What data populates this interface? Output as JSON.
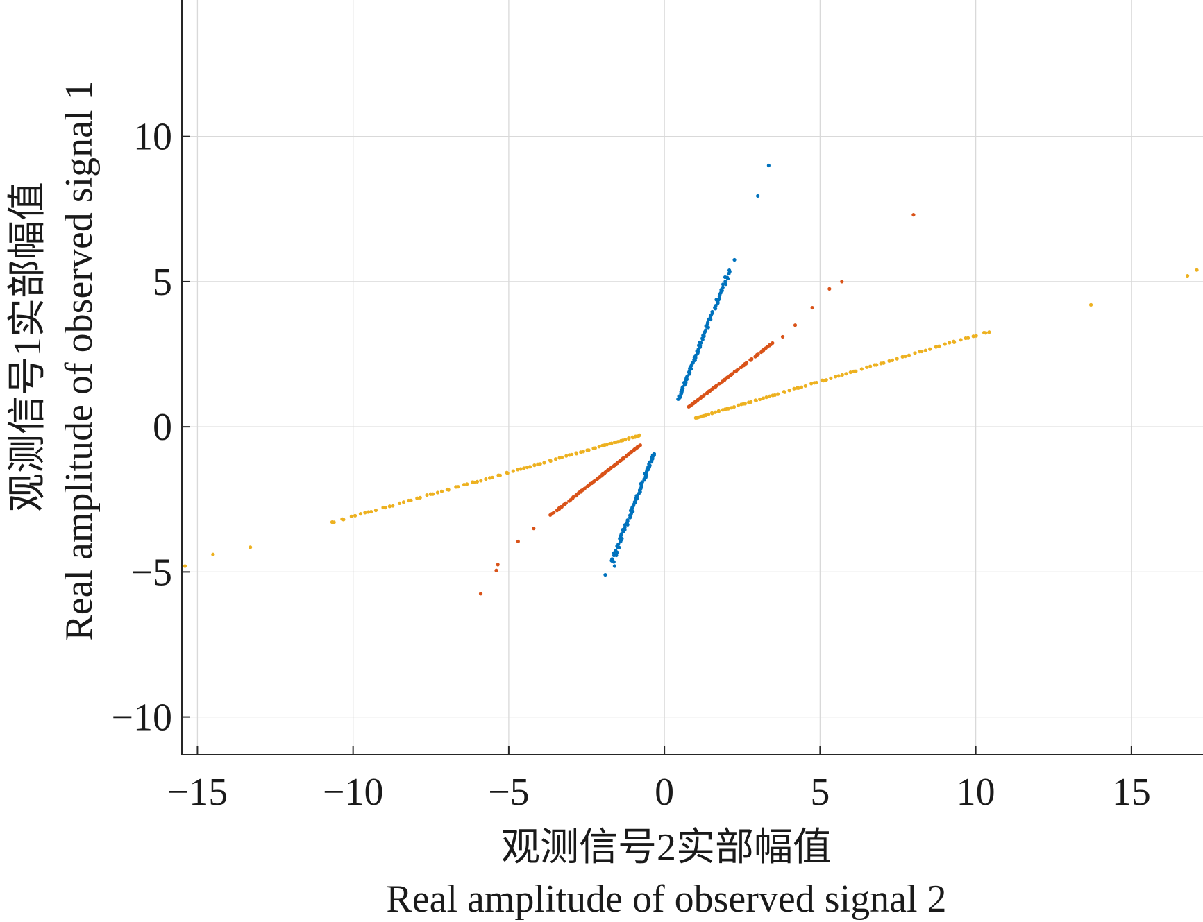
{
  "chart_data": {
    "type": "scatter",
    "title": "",
    "xlabel_cn": "观测信号2实部幅值",
    "xlabel_en": "Real amplitude of observed signal 2",
    "ylabel_cn": "观测信号1实部幅值",
    "ylabel_en": "Real amplitude of observed signal 1",
    "xlim": [
      -15.5,
      17.3
    ],
    "ylim": [
      -11.3,
      14.7
    ],
    "xticks": [
      -15,
      -10,
      -5,
      0,
      5,
      10,
      15
    ],
    "xtick_labels": [
      "−15",
      "−10",
      "−5",
      "0",
      "5",
      "10",
      "15"
    ],
    "yticks": [
      -10,
      -5,
      0,
      5,
      10
    ],
    "ytick_labels": [
      "−10",
      "−5",
      "0",
      "5",
      "10"
    ],
    "grid": true,
    "legend": false,
    "series": [
      {
        "color": "#0072BD",
        "segments": [
          {
            "x": [
              0.45,
              2.1
            ],
            "y": [
              0.95,
              5.4
            ]
          },
          {
            "x": [
              -0.35,
              -1.7
            ],
            "y": [
              -0.95,
              -4.7
            ]
          }
        ],
        "points": [
          {
            "x": 3.35,
            "y": 9.0
          },
          {
            "x": 3.0,
            "y": 7.95
          },
          {
            "x": 2.25,
            "y": 5.75
          },
          {
            "x": 1.75,
            "y": 4.4
          },
          {
            "x": -1.9,
            "y": -5.1
          },
          {
            "x": -1.6,
            "y": -4.8
          }
        ]
      },
      {
        "color": "#D95319",
        "segments": [
          {
            "x": [
              0.8,
              3.5
            ],
            "y": [
              0.7,
              2.9
            ]
          },
          {
            "x": [
              -0.8,
              -3.6
            ],
            "y": [
              -0.65,
              -3.0
            ]
          }
        ],
        "points": [
          {
            "x": 3.8,
            "y": 3.1
          },
          {
            "x": 4.2,
            "y": 3.5
          },
          {
            "x": 4.75,
            "y": 4.1
          },
          {
            "x": 5.3,
            "y": 4.75
          },
          {
            "x": 5.7,
            "y": 5.0
          },
          {
            "x": 8.0,
            "y": 7.3
          },
          {
            "x": -4.2,
            "y": -3.5
          },
          {
            "x": -4.7,
            "y": -3.95
          },
          {
            "x": -5.35,
            "y": -4.75
          },
          {
            "x": -5.4,
            "y": -4.95
          },
          {
            "x": -5.9,
            "y": -5.75
          }
        ]
      },
      {
        "color": "#EDB120",
        "segments": [
          {
            "x": [
              1.0,
              10.5
            ],
            "y": [
              0.3,
              3.3
            ]
          },
          {
            "x": [
              -0.8,
              -10.7
            ],
            "y": [
              -0.3,
              -3.3
            ]
          }
        ],
        "points": [
          {
            "x": 13.7,
            "y": 4.2
          },
          {
            "x": 16.8,
            "y": 5.2
          },
          {
            "x": 17.1,
            "y": 5.4
          },
          {
            "x": -13.3,
            "y": -4.15
          },
          {
            "x": -14.5,
            "y": -4.4
          },
          {
            "x": -15.4,
            "y": -4.8
          }
        ]
      }
    ]
  }
}
